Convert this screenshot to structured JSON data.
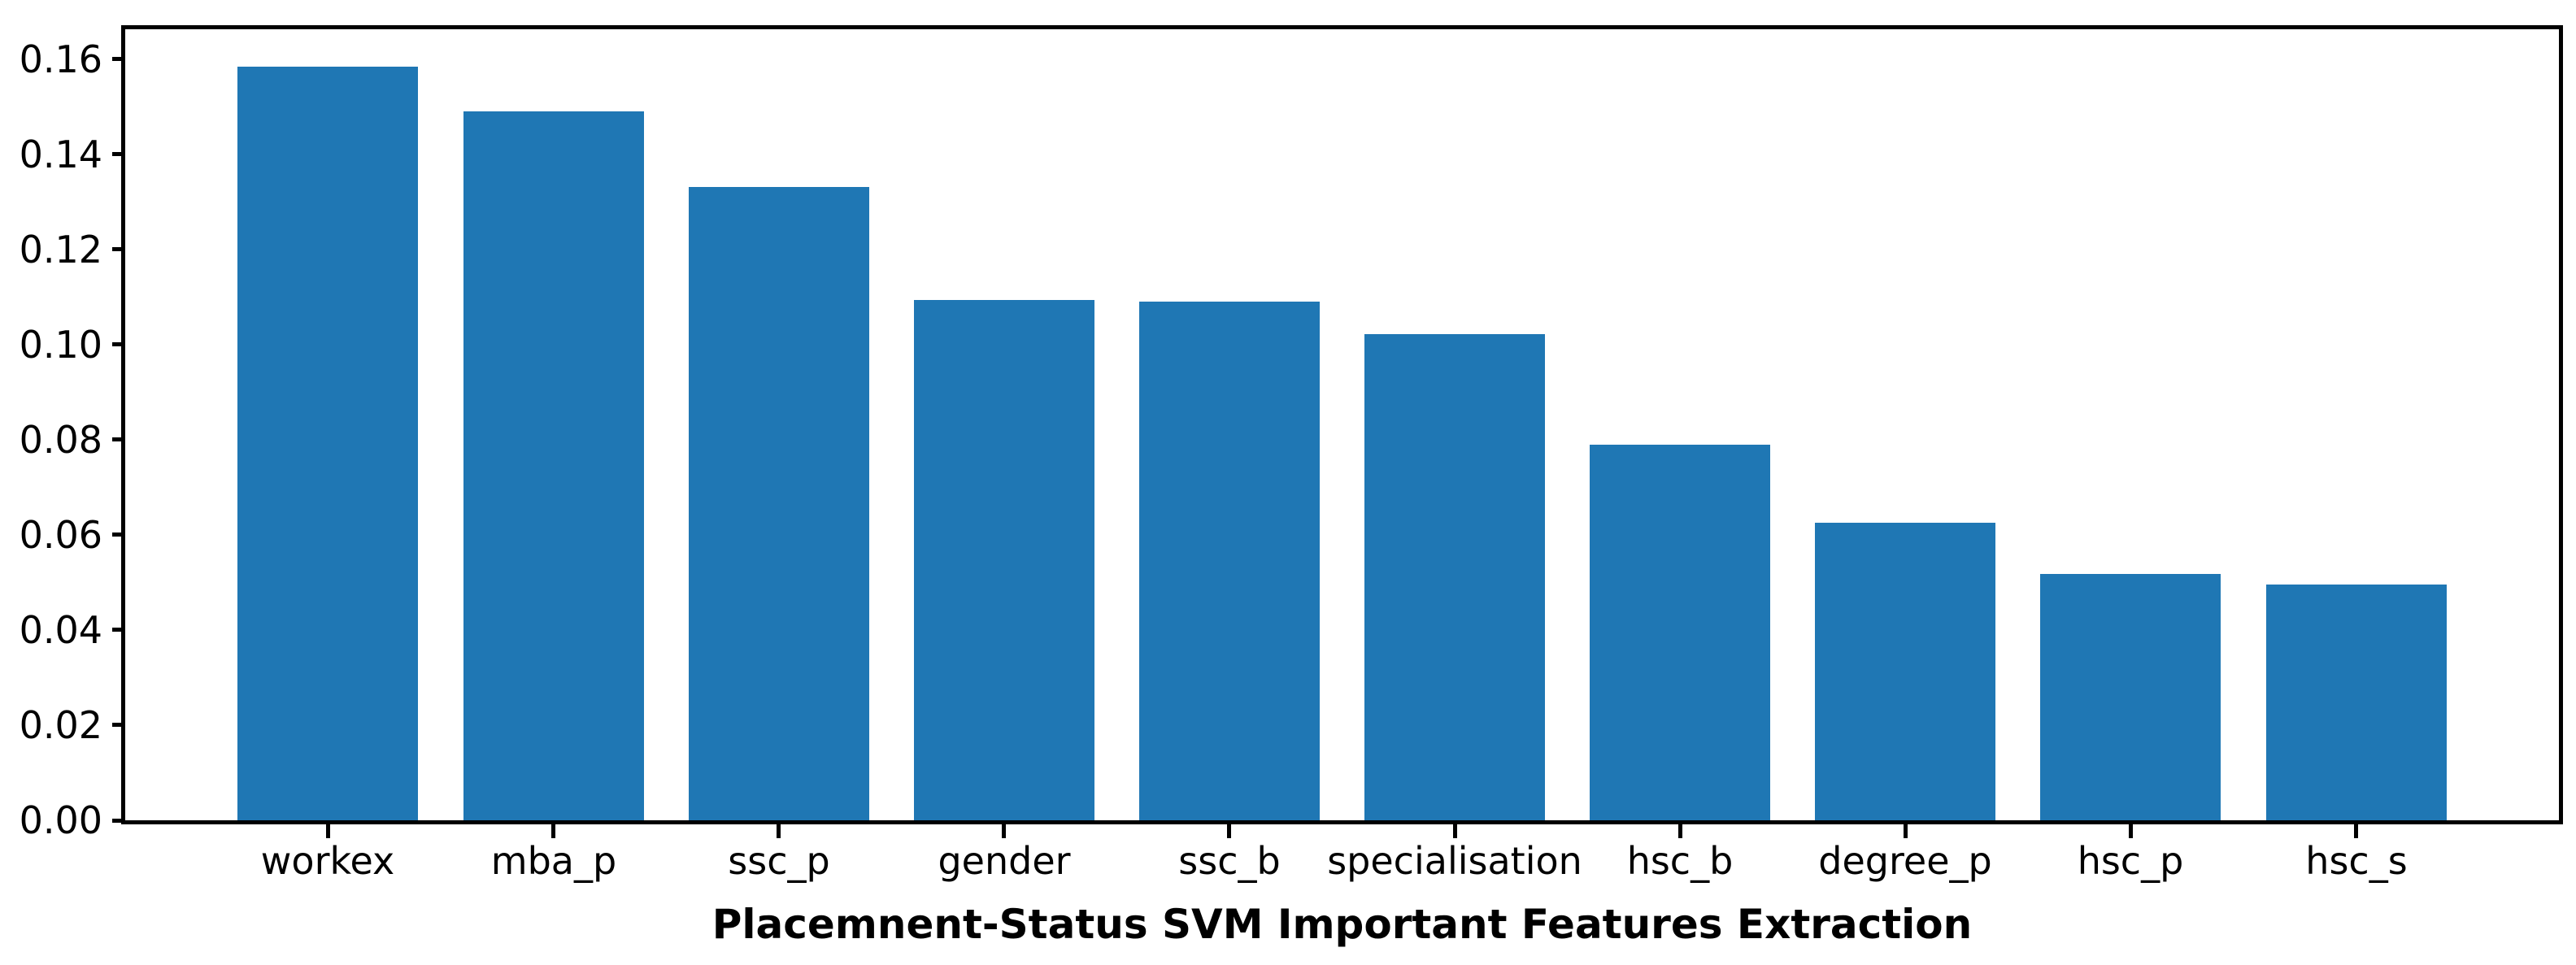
{
  "title": "Placemnent-Status SVM Important Features Extraction",
  "colors": {
    "bar": "#1f77b4",
    "axis": "#000000",
    "background": "#ffffff",
    "text": "#000000"
  },
  "chart_data": {
    "type": "bar",
    "categories": [
      "workex",
      "mba_p",
      "ssc_p",
      "gender",
      "ssc_b",
      "specialisation",
      "hsc_b",
      "degree_p",
      "hsc_p",
      "hsc_s"
    ],
    "values": [
      0.1585,
      0.149,
      0.1331,
      0.1093,
      0.1091,
      0.1022,
      0.0789,
      0.0625,
      0.0518,
      0.0495
    ],
    "title": "Placemnent-Status SVM Important Features Extraction",
    "xlabel": "",
    "ylabel": "",
    "ylim": [
      0,
      0.1663
    ],
    "yticks": [
      0.0,
      0.02,
      0.04,
      0.06,
      0.08,
      0.1,
      0.12,
      0.14,
      0.16
    ],
    "ytick_labels": [
      "0.00",
      "0.02",
      "0.04",
      "0.06",
      "0.08",
      "0.10",
      "0.12",
      "0.14",
      "0.16"
    ],
    "bar_color": "#1f77b4",
    "grid": false,
    "legend": null,
    "title_position": "bottom",
    "title_bold": true
  }
}
